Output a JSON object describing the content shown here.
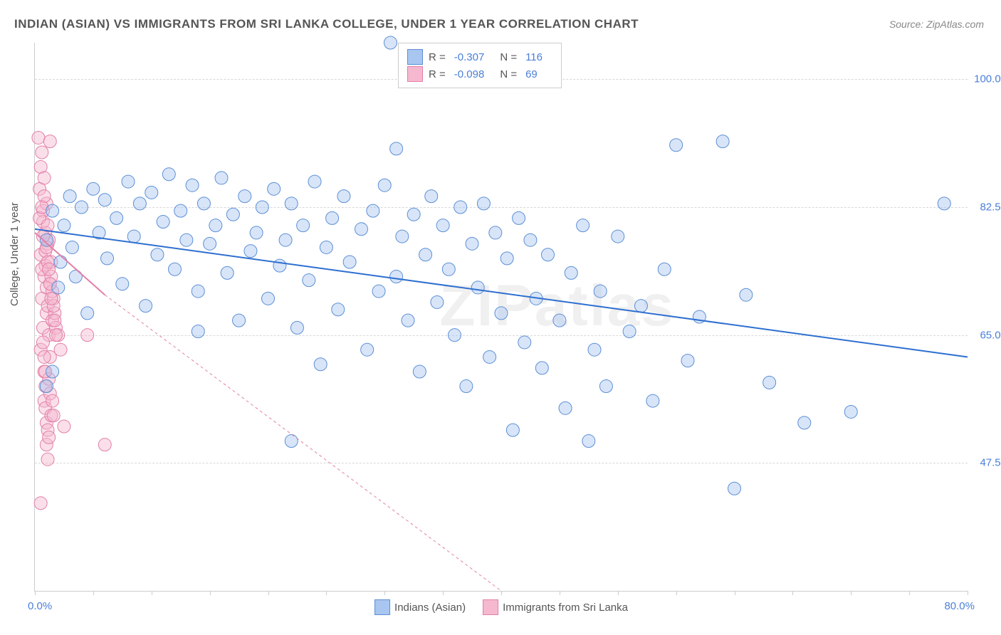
{
  "title": "INDIAN (ASIAN) VS IMMIGRANTS FROM SRI LANKA COLLEGE, UNDER 1 YEAR CORRELATION CHART",
  "source": "Source: ZipAtlas.com",
  "watermark": "ZIPatlas",
  "ylabel": "College, Under 1 year",
  "chart": {
    "type": "scatter",
    "background_color": "#ffffff",
    "grid_color": "#d8d8d8",
    "axis_color": "#cccccc",
    "xlim": [
      0,
      80
    ],
    "ylim": [
      30,
      105
    ],
    "xtick_labels": {
      "left": "0.0%",
      "right": "80.0%"
    },
    "xtick_positions": [
      0,
      5,
      10,
      15,
      20,
      25,
      30,
      35,
      40,
      45,
      50,
      55,
      60,
      65,
      70,
      75,
      80
    ],
    "ytick_positions": [
      47.5,
      65.0,
      82.5,
      100.0
    ],
    "ytick_labels": [
      "47.5%",
      "65.0%",
      "82.5%",
      "100.0%"
    ],
    "tick_label_color": "#4a7fd8",
    "axis_label_color": "#555555",
    "marker_radius": 9,
    "marker_opacity": 0.45,
    "marker_stroke_width": 1,
    "series": [
      {
        "name": "Indians (Asian)",
        "fill_color": "#a8c6f0",
        "stroke_color": "#5c8fd6",
        "line_color": "#2e6fd0",
        "line_width": 2,
        "line_dash": "none",
        "R": "-0.307",
        "N": "116",
        "trend": {
          "x1": 0,
          "y1": 79.5,
          "x2": 80,
          "y2": 62.0
        },
        "extrapolate_dash": false,
        "points": [
          [
            1.0,
            78
          ],
          [
            1.5,
            82
          ],
          [
            2.0,
            71.5
          ],
          [
            2.2,
            75
          ],
          [
            2.5,
            80
          ],
          [
            3.0,
            84
          ],
          [
            3.2,
            77
          ],
          [
            3.5,
            73
          ],
          [
            4.0,
            82.5
          ],
          [
            4.5,
            68
          ],
          [
            5.0,
            85
          ],
          [
            5.5,
            79
          ],
          [
            6.0,
            83.5
          ],
          [
            6.2,
            75.5
          ],
          [
            7.0,
            81
          ],
          [
            7.5,
            72
          ],
          [
            8.0,
            86
          ],
          [
            8.5,
            78.5
          ],
          [
            9.0,
            83
          ],
          [
            9.5,
            69
          ],
          [
            10.0,
            84.5
          ],
          [
            10.5,
            76
          ],
          [
            11.0,
            80.5
          ],
          [
            11.5,
            87
          ],
          [
            12.0,
            74
          ],
          [
            12.5,
            82
          ],
          [
            13.0,
            78
          ],
          [
            13.5,
            85.5
          ],
          [
            14.0,
            71
          ],
          [
            14.5,
            83
          ],
          [
            15.0,
            77.5
          ],
          [
            15.5,
            80
          ],
          [
            16.0,
            86.5
          ],
          [
            16.5,
            73.5
          ],
          [
            17.0,
            81.5
          ],
          [
            17.5,
            67
          ],
          [
            18.0,
            84
          ],
          [
            18.5,
            76.5
          ],
          [
            19.0,
            79
          ],
          [
            19.5,
            82.5
          ],
          [
            20.0,
            70
          ],
          [
            20.5,
            85
          ],
          [
            21.0,
            74.5
          ],
          [
            21.5,
            78
          ],
          [
            22.0,
            83
          ],
          [
            22.5,
            66
          ],
          [
            23.0,
            80
          ],
          [
            23.5,
            72.5
          ],
          [
            24.0,
            86
          ],
          [
            24.5,
            61
          ],
          [
            25.0,
            77
          ],
          [
            25.5,
            81
          ],
          [
            26.0,
            68.5
          ],
          [
            26.5,
            84
          ],
          [
            27.0,
            75
          ],
          [
            28.0,
            79.5
          ],
          [
            28.5,
            63
          ],
          [
            29.0,
            82
          ],
          [
            29.5,
            71
          ],
          [
            30.0,
            85.5
          ],
          [
            30.5,
            105
          ],
          [
            31.0,
            73
          ],
          [
            31.5,
            78.5
          ],
          [
            32.0,
            67
          ],
          [
            32.5,
            81.5
          ],
          [
            33.0,
            60
          ],
          [
            33.5,
            76
          ],
          [
            34.0,
            84
          ],
          [
            34.5,
            69.5
          ],
          [
            35.0,
            80
          ],
          [
            35.5,
            74
          ],
          [
            36.0,
            65
          ],
          [
            36.5,
            82.5
          ],
          [
            37.0,
            58
          ],
          [
            37.5,
            77.5
          ],
          [
            38.0,
            71.5
          ],
          [
            38.5,
            83
          ],
          [
            39.0,
            62
          ],
          [
            39.5,
            79
          ],
          [
            40.0,
            68
          ],
          [
            40.5,
            75.5
          ],
          [
            41.0,
            52
          ],
          [
            41.5,
            81
          ],
          [
            42.0,
            64
          ],
          [
            42.5,
            78
          ],
          [
            43.0,
            70
          ],
          [
            43.5,
            60.5
          ],
          [
            44.0,
            76
          ],
          [
            45.0,
            67
          ],
          [
            45.5,
            55
          ],
          [
            46.0,
            73.5
          ],
          [
            47.0,
            80
          ],
          [
            47.5,
            50.5
          ],
          [
            48.0,
            63
          ],
          [
            48.5,
            71
          ],
          [
            49.0,
            58
          ],
          [
            50.0,
            78.5
          ],
          [
            51.0,
            65.5
          ],
          [
            52.0,
            69
          ],
          [
            53.0,
            56
          ],
          [
            54.0,
            74
          ],
          [
            55.0,
            91
          ],
          [
            56.0,
            61.5
          ],
          [
            57.0,
            67.5
          ],
          [
            59.0,
            91.5
          ],
          [
            60.0,
            44
          ],
          [
            61.0,
            70.5
          ],
          [
            63.0,
            58.5
          ],
          [
            66.0,
            53
          ],
          [
            70.0,
            54.5
          ],
          [
            78.0,
            83
          ],
          [
            22.0,
            50.5
          ],
          [
            14.0,
            65.5
          ],
          [
            1.0,
            58
          ],
          [
            31.0,
            90.5
          ],
          [
            1.5,
            60
          ]
        ]
      },
      {
        "name": "Immigrants from Sri Lanka",
        "fill_color": "#f5b8cf",
        "stroke_color": "#e37fa8",
        "line_color": "#e37fa8",
        "line_width": 2,
        "line_dash": "4,4",
        "R": "-0.098",
        "N": "69",
        "trend": {
          "x1": 0,
          "y1": 79.0,
          "x2": 6,
          "y2": 70.5
        },
        "extrapolate": {
          "x1": 6,
          "y1": 70.5,
          "x2": 40,
          "y2": 30
        },
        "points": [
          [
            0.3,
            92
          ],
          [
            0.5,
            88
          ],
          [
            0.4,
            85
          ],
          [
            0.6,
            90
          ],
          [
            0.7,
            82
          ],
          [
            0.8,
            86.5
          ],
          [
            0.9,
            79
          ],
          [
            1.0,
            83
          ],
          [
            0.5,
            76
          ],
          [
            0.7,
            80.5
          ],
          [
            0.8,
            73
          ],
          [
            1.1,
            77.5
          ],
          [
            0.6,
            70
          ],
          [
            0.9,
            74.5
          ],
          [
            1.0,
            68
          ],
          [
            1.2,
            78
          ],
          [
            0.4,
            81
          ],
          [
            0.7,
            66
          ],
          [
            0.8,
            84
          ],
          [
            1.3,
            72
          ],
          [
            0.5,
            63
          ],
          [
            0.9,
            76.5
          ],
          [
            1.1,
            69
          ],
          [
            0.6,
            82.5
          ],
          [
            1.4,
            75
          ],
          [
            0.8,
            60
          ],
          [
            1.0,
            71.5
          ],
          [
            1.2,
            65
          ],
          [
            0.7,
            78.5
          ],
          [
            1.5,
            67
          ],
          [
            0.9,
            58
          ],
          [
            1.1,
            80
          ],
          [
            1.3,
            62
          ],
          [
            0.6,
            74
          ],
          [
            1.6,
            70
          ],
          [
            0.8,
            56
          ],
          [
            1.0,
            77
          ],
          [
            1.2,
            59
          ],
          [
            1.4,
            73
          ],
          [
            0.7,
            64
          ],
          [
            1.7,
            68
          ],
          [
            0.9,
            55
          ],
          [
            1.1,
            75
          ],
          [
            1.3,
            57
          ],
          [
            1.5,
            71
          ],
          [
            0.8,
            62
          ],
          [
            1.8,
            66
          ],
          [
            1.0,
            53
          ],
          [
            1.2,
            74
          ],
          [
            1.4,
            54
          ],
          [
            1.6,
            69
          ],
          [
            0.9,
            60
          ],
          [
            2.0,
            65
          ],
          [
            1.1,
            52
          ],
          [
            1.3,
            72
          ],
          [
            1.5,
            56
          ],
          [
            1.7,
            67
          ],
          [
            1.0,
            50
          ],
          [
            2.2,
            63
          ],
          [
            1.2,
            51
          ],
          [
            1.4,
            70
          ],
          [
            1.6,
            54
          ],
          [
            1.8,
            65
          ],
          [
            1.1,
            48
          ],
          [
            2.5,
            52.5
          ],
          [
            4.5,
            65
          ],
          [
            0.5,
            42
          ],
          [
            6.0,
            50
          ],
          [
            1.3,
            91.5
          ]
        ]
      }
    ]
  },
  "legend": {
    "bottom_items": [
      "Indians (Asian)",
      "Immigrants from Sri Lanka"
    ]
  }
}
